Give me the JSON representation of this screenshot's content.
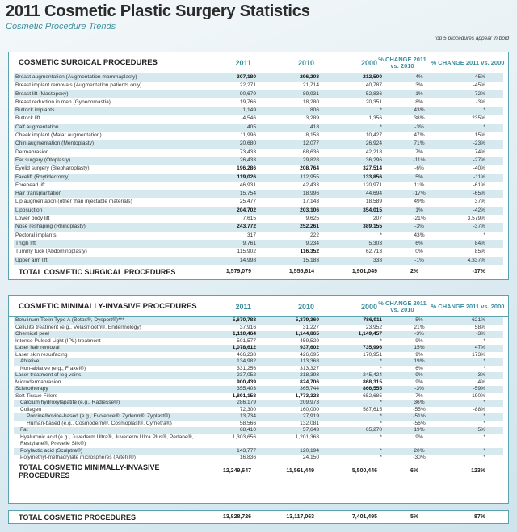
{
  "title": "2011 Cosmetic Plastic Surgery Statistics",
  "subtitle": "Cosmetic Procedure Trends",
  "note": "Top 5 procedures appear in bold",
  "columns": {
    "y2011": "2011",
    "y2010": "2010",
    "y2000": "2000",
    "pct1": "% CHANGE 2011 vs. 2010",
    "pct2": "% CHANGE 2011 vs. 2000"
  },
  "colors": {
    "accent": "#3a8e9c",
    "border": "#5aa2ae",
    "row_shade": "#d6e9ef"
  },
  "surgical": {
    "heading": "COSMETIC SURGICAL PROCEDURES",
    "rows": [
      {
        "label": "Breast augmentation (Augmentation mammaplasty)",
        "values": [
          "307,180",
          "296,203",
          "212,500",
          "4%",
          "45%"
        ],
        "bold": [
          0,
          1,
          2
        ]
      },
      {
        "label": "Breast implant removals (Augmentation patients only)",
        "values": [
          "22,271",
          "21,714",
          "40,787",
          "3%",
          "-45%"
        ],
        "bold": []
      },
      {
        "label": "Breast lift (Mastopexy)",
        "values": [
          "90,679",
          "89,931",
          "52,836",
          "1%",
          "72%"
        ],
        "bold": []
      },
      {
        "label": "Breast reduction in men (Gynecomastia)",
        "values": [
          "19,766",
          "18,280",
          "20,351",
          "8%",
          "-3%"
        ],
        "bold": []
      },
      {
        "label": "Buttock implants",
        "values": [
          "1,149",
          "806",
          "*",
          "43%",
          "*"
        ],
        "bold": []
      },
      {
        "label": "Buttock lift",
        "values": [
          "4,546",
          "3,289",
          "1,356",
          "38%",
          "235%"
        ],
        "bold": []
      },
      {
        "label": "Calf augmentation",
        "values": [
          "405",
          "418",
          "*",
          "-3%",
          "*"
        ],
        "bold": []
      },
      {
        "label": "Cheek implant (Malar augmentation)",
        "values": [
          "11,996",
          "8,158",
          "10,427",
          "47%",
          "15%"
        ],
        "bold": []
      },
      {
        "label": "Chin augmentation (Mentoplasty)",
        "values": [
          "20,680",
          "12,077",
          "26,924",
          "71%",
          "-23%"
        ],
        "bold": []
      },
      {
        "label": "Dermabrasion",
        "values": [
          "73,433",
          "68,636",
          "42,218",
          "7%",
          "74%"
        ],
        "bold": []
      },
      {
        "label": "Ear surgery (Otoplasty)",
        "values": [
          "26,433",
          "29,828",
          "36,296",
          "-11%",
          "-27%"
        ],
        "bold": []
      },
      {
        "label": "Eyelid surgery (Blepharoplasty)",
        "values": [
          "196,286",
          "208,764",
          "327,514",
          "-6%",
          "-40%"
        ],
        "bold": [
          0,
          1,
          2
        ]
      },
      {
        "label": "Facelift (Rhytidectomy)",
        "values": [
          "119,026",
          "112,955",
          "133,856",
          "5%",
          "-11%"
        ],
        "bold": [
          0,
          2
        ]
      },
      {
        "label": "Forehead lift",
        "values": [
          "46,931",
          "42,433",
          "120,971",
          "11%",
          "-61%"
        ],
        "bold": []
      },
      {
        "label": "Hair transplantation",
        "values": [
          "15,754",
          "18,996",
          "44,694",
          "-17%",
          "-65%"
        ],
        "bold": []
      },
      {
        "label": "Lip augmentation (other than injectable materials)",
        "values": [
          "25,477",
          "17,143",
          "18,589",
          "49%",
          "37%"
        ],
        "bold": []
      },
      {
        "label": "Liposuction",
        "values": [
          "204,702",
          "203,106",
          "354,015",
          "1%",
          "-42%"
        ],
        "bold": [
          0,
          1,
          2
        ]
      },
      {
        "label": "Lower body lift",
        "values": [
          "7,615",
          "9,625",
          "207",
          "-21%",
          "3,579%"
        ],
        "bold": []
      },
      {
        "label": "Nose reshaping (Rhinoplasty)",
        "values": [
          "243,772",
          "252,261",
          "389,155",
          "-3%",
          "-37%"
        ],
        "bold": [
          0,
          1,
          2
        ]
      },
      {
        "label": "Pectoral implants",
        "values": [
          "317",
          "222",
          "*",
          "43%",
          "*"
        ],
        "bold": []
      },
      {
        "label": "Thigh lift",
        "values": [
          "9,761",
          "9,234",
          "5,303",
          "6%",
          "84%"
        ],
        "bold": []
      },
      {
        "label": "Tummy tuck (Abdominoplasty)",
        "values": [
          "115,902",
          "116,352",
          "62,713",
          "0%",
          "85%"
        ],
        "bold": [
          1
        ]
      },
      {
        "label": "Upper arm lift",
        "values": [
          "14,998",
          "15,183",
          "338",
          "-1%",
          "4,337%"
        ],
        "bold": []
      }
    ],
    "total": {
      "label": "TOTAL COSMETIC SURGICAL PROCEDURES",
      "values": [
        "1,579,079",
        "1,555,614",
        "1,901,049",
        "2%",
        "-17%"
      ]
    }
  },
  "minimally": {
    "heading": "COSMETIC MINIMALLY-INVASIVE PROCEDURES",
    "rows": [
      {
        "label": "Botulinum Toxin Type A (Botox®, Dysport®)***",
        "values": [
          "5,670,788",
          "5,379,360",
          "786,911",
          "5%",
          "621%"
        ],
        "bold": [
          0,
          1,
          2
        ],
        "indent": 0
      },
      {
        "label": "Cellulite treatment (e.g., Velasmooth®, Endermology)",
        "values": [
          "37,916",
          "31,227",
          "23,952",
          "21%",
          "58%"
        ],
        "bold": [],
        "indent": 0
      },
      {
        "label": "Chemical peel",
        "values": [
          "1,110,464",
          "1,144,865",
          "1,149,457",
          "-3%",
          "-3%"
        ],
        "bold": [
          0,
          1,
          2
        ],
        "indent": 0
      },
      {
        "label": "Intense Pulsed Light (IPL) treatment",
        "values": [
          "501,577",
          "459,529",
          "*",
          "9%",
          "*"
        ],
        "bold": [],
        "indent": 0
      },
      {
        "label": "Laser hair removal",
        "values": [
          "1,078,612",
          "937,602",
          "735,996",
          "15%",
          "47%"
        ],
        "bold": [
          0,
          1,
          2
        ],
        "indent": 0
      },
      {
        "label": "Laser skin resurfacing",
        "values": [
          "466,238",
          "426,695",
          "170,951",
          "9%",
          "173%"
        ],
        "bold": [],
        "indent": 0
      },
      {
        "label": "Ablative",
        "values": [
          "134,982",
          "113,368",
          "*",
          "19%",
          "*"
        ],
        "bold": [],
        "indent": 1
      },
      {
        "label": "Non-ablative (e.g., Fraxel®)",
        "values": [
          "331,256",
          "313,327",
          "*",
          "6%",
          "*"
        ],
        "bold": [],
        "indent": 1
      },
      {
        "label": "Laser treatment of leg veins",
        "values": [
          "237,052",
          "218,393",
          "245,424",
          "9%",
          "-3%"
        ],
        "bold": [],
        "indent": 0
      },
      {
        "label": "Microdermabrasion",
        "values": [
          "900,439",
          "824,706",
          "868,315",
          "9%",
          "4%"
        ],
        "bold": [
          0,
          1,
          2
        ],
        "indent": 0
      },
      {
        "label": "Sclerotherapy",
        "values": [
          "355,403",
          "365,744",
          "866,555",
          "-3%",
          "-59%"
        ],
        "bold": [
          2
        ],
        "indent": 0
      },
      {
        "label": "Soft Tissue Fillers",
        "values": [
          "1,891,158",
          "1,773,328",
          "652,685",
          "7%",
          "190%"
        ],
        "bold": [
          0,
          1
        ],
        "indent": 0
      },
      {
        "label": "Calcium hydroxylapatite (e.g., Radiesse®)",
        "values": [
          "286,179",
          "209,973",
          "*",
          "36%",
          "*"
        ],
        "bold": [],
        "indent": 1
      },
      {
        "label": "Collagen",
        "values": [
          "72,300",
          "160,000",
          "587,615",
          "-55%",
          "-88%"
        ],
        "bold": [],
        "indent": 1
      },
      {
        "label": "Porcine/bovine-based (e.g., Evolence®, Zyderm®, Zyplast®)",
        "values": [
          "13,734",
          "27,919",
          "*",
          "-51%",
          "*"
        ],
        "bold": [],
        "indent": 2
      },
      {
        "label": "Human-based (e.g., Cosmoderm®, Cosmoplast®, Cymetra®)",
        "values": [
          "58,566",
          "132,081",
          "*",
          "-56%",
          "*"
        ],
        "bold": [],
        "indent": 2
      },
      {
        "label": "Fat",
        "values": [
          "68,410",
          "57,643",
          "65,270",
          "19%",
          "5%"
        ],
        "bold": [],
        "indent": 1
      },
      {
        "label": "Hyaluronic acid (e.g., Juvederm Ultra®, Juvederm Ultra Plus®, Perlane®, Restylane®, Prevelle Silk®)",
        "values": [
          "1,303,656",
          "1,201,368",
          "*",
          "9%",
          "*"
        ],
        "bold": [],
        "indent": 1
      },
      {
        "label": "Polylactic acid (Sculptra®)",
        "values": [
          "143,777",
          "120,194",
          "*",
          "20%",
          "*"
        ],
        "bold": [],
        "indent": 1
      },
      {
        "label": "Polymethyl-methacrylate microspheres (Artefill®)",
        "values": [
          "16,836",
          "24,150",
          "*",
          "-30%",
          "*"
        ],
        "bold": [],
        "indent": 1
      }
    ],
    "total": {
      "label": "TOTAL COSMETIC MINIMALLY-INVASIVE PROCEDURES",
      "values": [
        "12,249,647",
        "11,561,449",
        "5,500,446",
        "6%",
        "123%"
      ]
    }
  },
  "grand_total": {
    "label": "TOTAL COSMETIC PROCEDURES",
    "values": [
      "13,828,726",
      "13,117,063",
      "7,401,495",
      "5%",
      "87%"
    ]
  }
}
